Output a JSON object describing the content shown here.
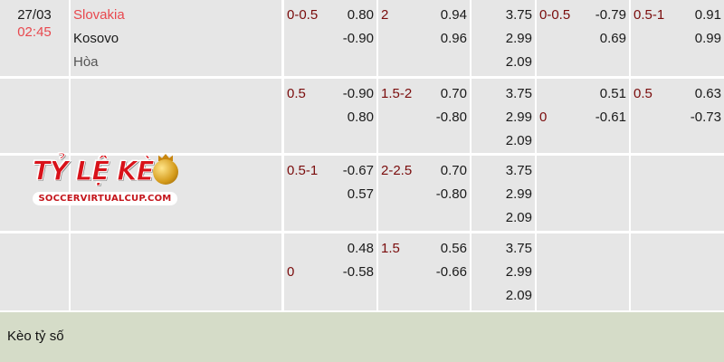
{
  "match": {
    "date": "27/03",
    "time": "02:45",
    "home": "Slovakia",
    "away": "Kosovo",
    "draw": "Hòa"
  },
  "colors": {
    "home": "#e8484e",
    "time": "#e8484e",
    "line": "#7a0c0c",
    "cell_bg": "#e6e6e6",
    "footer_bg": "#d5dcc8"
  },
  "rows": [
    {
      "cells": [
        {
          "line": "0-0.5",
          "line_pos": 0,
          "values": [
            "0.80",
            "-0.90"
          ]
        },
        {
          "line": "2",
          "line_pos": 0,
          "values": [
            "0.94",
            "0.96"
          ]
        },
        {
          "line": "",
          "line_pos": 0,
          "values": [
            "3.75",
            "2.99",
            "2.09"
          ]
        },
        {
          "line": "0-0.5",
          "line_pos": 0,
          "values": [
            "-0.79",
            "0.69"
          ]
        },
        {
          "line": "0.5-1",
          "line_pos": 0,
          "values": [
            "0.91",
            "0.99"
          ]
        }
      ]
    },
    {
      "cells": [
        {
          "line": "0.5",
          "line_pos": 0,
          "values": [
            "-0.90",
            "0.80"
          ]
        },
        {
          "line": "1.5-2",
          "line_pos": 0,
          "values": [
            "0.70",
            "-0.80"
          ]
        },
        {
          "line": "",
          "line_pos": 0,
          "values": [
            "3.75",
            "2.99",
            "2.09"
          ]
        },
        {
          "line": "0",
          "line_pos": 1,
          "values": [
            "0.51",
            "-0.61"
          ]
        },
        {
          "line": "0.5",
          "line_pos": 0,
          "values": [
            "0.63",
            "-0.73"
          ]
        }
      ]
    },
    {
      "cells": [
        {
          "line": "0.5-1",
          "line_pos": 0,
          "values": [
            "-0.67",
            "0.57"
          ]
        },
        {
          "line": "2-2.5",
          "line_pos": 0,
          "values": [
            "0.70",
            "-0.80"
          ]
        },
        {
          "line": "",
          "line_pos": 0,
          "values": [
            "3.75",
            "2.99",
            "2.09"
          ]
        },
        {
          "line": "",
          "line_pos": 0,
          "values": []
        },
        {
          "line": "",
          "line_pos": 0,
          "values": []
        }
      ]
    },
    {
      "cells": [
        {
          "line": "0",
          "line_pos": 1,
          "values": [
            "0.48",
            "-0.58"
          ]
        },
        {
          "line": "1.5",
          "line_pos": 0,
          "values": [
            "0.56",
            "-0.66"
          ]
        },
        {
          "line": "",
          "line_pos": 0,
          "values": [
            "3.75",
            "2.99",
            "2.09"
          ]
        },
        {
          "line": "",
          "line_pos": 0,
          "values": []
        },
        {
          "line": "",
          "line_pos": 0,
          "values": []
        }
      ]
    }
  ],
  "logo": {
    "title": "TỶ LỆ KÈO",
    "site": "SOCCERVIRTUALCUP.COM"
  },
  "footer": {
    "label": "Kèo tỷ số"
  }
}
